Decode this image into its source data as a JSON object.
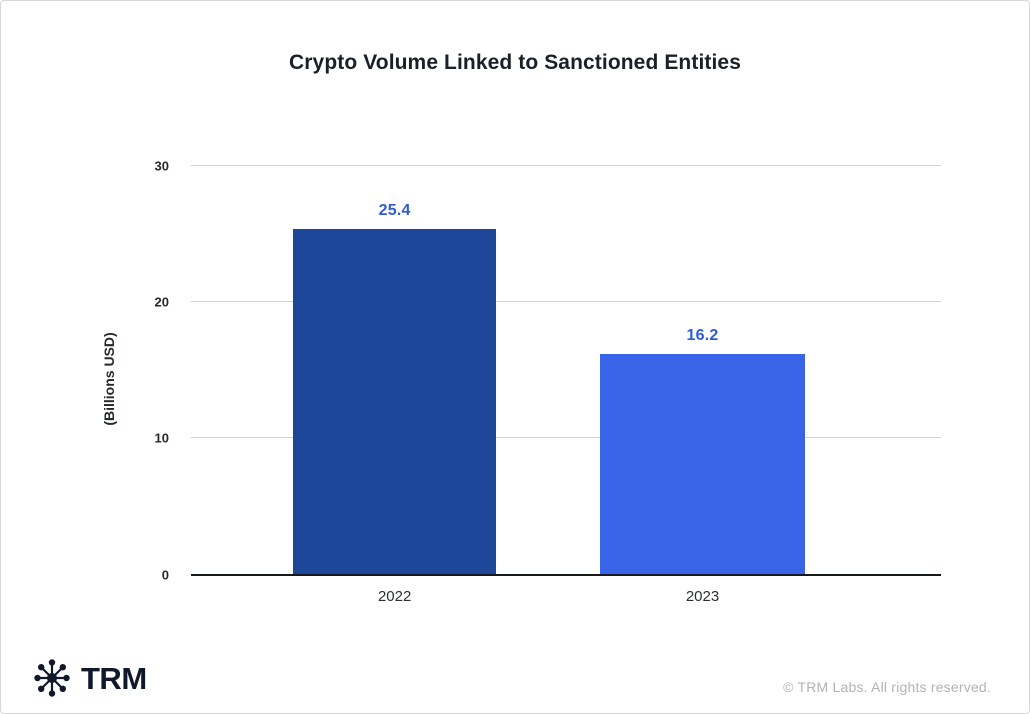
{
  "chart_data": {
    "type": "bar",
    "title": "Crypto Volume Linked to Sanctioned Entities",
    "categories": [
      "2022",
      "2023"
    ],
    "values": [
      25.4,
      16.2
    ],
    "xlabel": "",
    "ylabel": "(Billions USD)",
    "ylim": [
      0,
      30
    ],
    "yticks": [
      30,
      20,
      10,
      0
    ],
    "grid": "horizontal-light-gray, black baseline at 0",
    "legend": "none",
    "bar_colors": [
      "#1e4799",
      "#3865e8"
    ],
    "value_label_color": "#2e5cd8"
  },
  "footer": {
    "brand": "TRM",
    "brand_icon": "trm-network-icon",
    "copyright": "© TRM Labs. All rights reserved."
  }
}
